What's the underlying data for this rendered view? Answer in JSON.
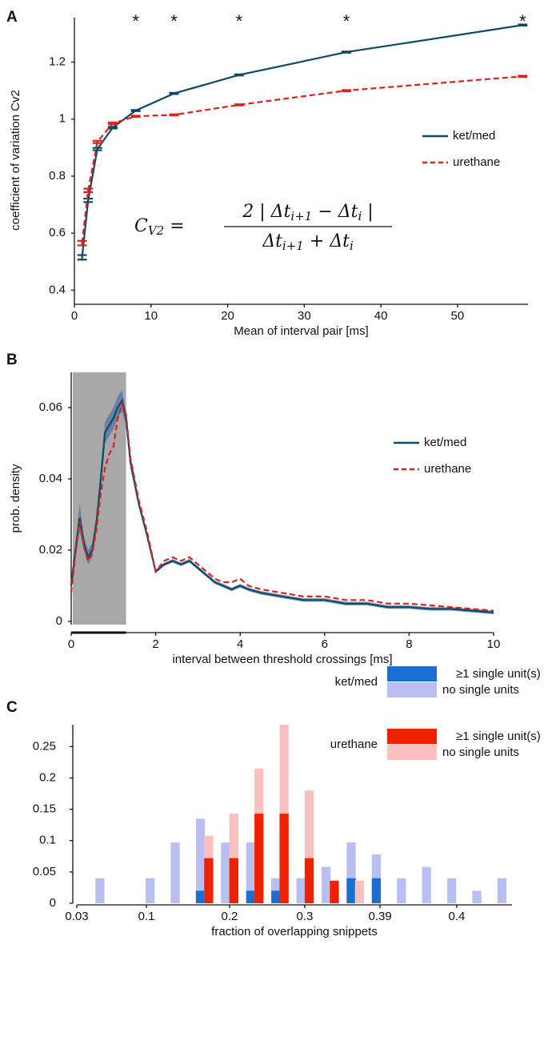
{
  "chart_data": [
    {
      "type": "line",
      "panel_label": "A",
      "x_label": "Mean of interval pair [ms]",
      "y_label": "coefficient of variation  Cv2",
      "xlim": [
        0,
        59.2
      ],
      "xticks": [
        0,
        10,
        20,
        30,
        40,
        50
      ],
      "ylim": [
        0.356,
        1.356
      ],
      "yticks": [
        0.4,
        0.6,
        0.8,
        1,
        1.2
      ],
      "legend": "right",
      "series": [
        {
          "name": "ket/med",
          "color": "#0e4a63",
          "dash": false,
          "x": [
            1,
            1.8,
            3,
            5,
            8,
            13,
            21.5,
            35.5,
            58.5
          ],
          "values": [
            0.515,
            0.715,
            0.895,
            0.97,
            1.03,
            1.09,
            1.155,
            1.235,
            1.33
          ],
          "errors": [
            0.008,
            0.006,
            0.004,
            0.003,
            0.002,
            0.002,
            0.002,
            0.002,
            0.002
          ]
        },
        {
          "name": "urethane",
          "color": "#e0201b",
          "dash": true,
          "x": [
            1,
            1.8,
            3,
            5,
            8,
            13,
            21.5,
            35.5,
            58.5
          ],
          "values": [
            0.565,
            0.75,
            0.92,
            0.985,
            1.01,
            1.015,
            1.05,
            1.1,
            1.15
          ],
          "errors": [
            0.008,
            0.006,
            0.004,
            0.003,
            0.002,
            0.002,
            0.002,
            0.002,
            0.002
          ]
        }
      ],
      "annotations": [
        {
          "text": "*",
          "x": 8
        },
        {
          "text": "*",
          "x": 13
        },
        {
          "text": "*",
          "x": 21.5
        },
        {
          "text": "*",
          "x": 35.5
        },
        {
          "text": "*",
          "x": 58.5
        }
      ],
      "formula": {
        "lhs": [
          "C",
          "V2",
          " = "
        ],
        "numerator": [
          "2 | Δt",
          "i+1",
          " − Δt",
          "i",
          " |"
        ],
        "denominator": [
          "Δt",
          "i+1",
          " + Δt",
          "i"
        ]
      }
    },
    {
      "type": "line",
      "panel_label": "B",
      "x_label": "interval between threshold crossings [ms]",
      "y_label": "prob. density",
      "xlim": [
        0,
        10
      ],
      "xticks": [
        0,
        2,
        4,
        6,
        8,
        10
      ],
      "ylim": [
        -0.0009,
        0.0699
      ],
      "yticks": [
        0,
        0.02,
        0.04,
        0.06
      ],
      "legend": "right",
      "shaded_region": [
        0,
        1.3
      ],
      "x": [
        0,
        0.1,
        0.2,
        0.3,
        0.4,
        0.5,
        0.6,
        0.7,
        0.8,
        0.9,
        1.0,
        1.1,
        1.2,
        1.3,
        1.4,
        1.6,
        1.8,
        2.0,
        2.2,
        2.4,
        2.6,
        2.8,
        3.0,
        3.2,
        3.4,
        3.6,
        3.8,
        4.0,
        4.2,
        4.5,
        5.0,
        5.5,
        6.0,
        6.5,
        7.0,
        7.5,
        8.0,
        8.5,
        9.0,
        9.5,
        10
      ],
      "series": [
        {
          "name": "ket/med",
          "color": "#0e4a63",
          "dash": false,
          "band_color": "#4a6fa5",
          "values": [
            0.01,
            0.02,
            0.029,
            0.022,
            0.018,
            0.02,
            0.028,
            0.04,
            0.053,
            0.055,
            0.057,
            0.06,
            0.062,
            0.057,
            0.045,
            0.033,
            0.024,
            0.014,
            0.016,
            0.017,
            0.016,
            0.017,
            0.015,
            0.013,
            0.011,
            0.01,
            0.009,
            0.01,
            0.009,
            0.008,
            0.007,
            0.006,
            0.006,
            0.005,
            0.005,
            0.004,
            0.004,
            0.0035,
            0.0035,
            0.003,
            0.0025
          ],
          "band": [
            0.001,
            0.002,
            0.004,
            0.002,
            0.002,
            0.002,
            0.002,
            0.003,
            0.003,
            0.003,
            0.003,
            0.003,
            0.003,
            0.002,
            0.002,
            0.001,
            0.0005,
            0.0005,
            0.0005,
            0.0005,
            0.0005,
            0.0005,
            0.0005,
            0.0005,
            0.0005,
            0.0005,
            0.0005,
            0.0005,
            0.0005,
            0.0005,
            0.0005,
            0.0005,
            0.0005,
            0.0005,
            0.0005,
            0.0005,
            0.0005,
            0.0005,
            0.0005,
            0.0005,
            0.0005
          ]
        },
        {
          "name": "urethane",
          "color": "#e0201b",
          "dash": true,
          "values": [
            0.008,
            0.019,
            0.028,
            0.021,
            0.017,
            0.019,
            0.026,
            0.036,
            0.043,
            0.047,
            0.049,
            0.057,
            0.061,
            0.058,
            0.046,
            0.034,
            0.025,
            0.014,
            0.017,
            0.018,
            0.017,
            0.018,
            0.016,
            0.014,
            0.012,
            0.011,
            0.011,
            0.012,
            0.01,
            0.009,
            0.008,
            0.007,
            0.007,
            0.006,
            0.006,
            0.005,
            0.005,
            0.0045,
            0.004,
            0.0035,
            0.003
          ]
        }
      ]
    },
    {
      "type": "histogram",
      "panel_label": "C",
      "x_label": "fraction of overlapping snippets",
      "xlim": [
        -0.92,
        16.4
      ],
      "xticks": [
        {
          "value": -0.92,
          "label": "0.03"
        },
        {
          "value": 1.85,
          "label": "0.1"
        },
        {
          "value": 5.16,
          "label": "0.2"
        },
        {
          "value": 8.15,
          "label": "0.3"
        },
        {
          "value": 11.15,
          "label": "0.39"
        },
        {
          "value": 14.2,
          "label": "0.4"
        }
      ],
      "ylim": [
        0,
        0.285
      ],
      "yticks": [
        0,
        0.05,
        0.1,
        0.15,
        0.2,
        0.25
      ],
      "legend": "upper right",
      "groups": [
        {
          "name": "ket/med",
          "series": [
            {
              "name": "no single units",
              "color": "#b9bff0",
              "x": [
                0,
                2,
                3,
                4,
                5,
                6,
                7,
                8,
                9,
                10,
                11,
                12,
                13,
                14,
                15,
                16
              ],
              "values": [
                0.04,
                0.04,
                0.097,
                0.135,
                0.097,
                0.097,
                0.04,
                0.04,
                0.058,
                0.097,
                0.078,
                0.04,
                0.058,
                0.04,
                0.02,
                0.04
              ]
            },
            {
              "name": "≥1 single unit(s)",
              "color": "#1a6fd0",
              "x": [
                4,
                6,
                7,
                10,
                11
              ],
              "values": [
                0.02,
                0.02,
                0.02,
                0.04,
                0.04
              ]
            }
          ]
        },
        {
          "name": "urethane",
          "series": [
            {
              "name": "no single units",
              "color": "#f9c0c0",
              "x": [
                4.33,
                5.33,
                6.33,
                7.33,
                8.33,
                10.33
              ],
              "values": [
                0.108,
                0.143,
                0.215,
                0.285,
                0.18,
                0.036
              ]
            },
            {
              "name": "≥1 single unit(s)",
              "color": "#ee2200",
              "x": [
                4.33,
                5.33,
                6.33,
                7.33,
                8.33,
                9.33
              ],
              "values": [
                0.072,
                0.072,
                0.143,
                0.143,
                0.072,
                0.036
              ]
            }
          ]
        }
      ]
    }
  ]
}
